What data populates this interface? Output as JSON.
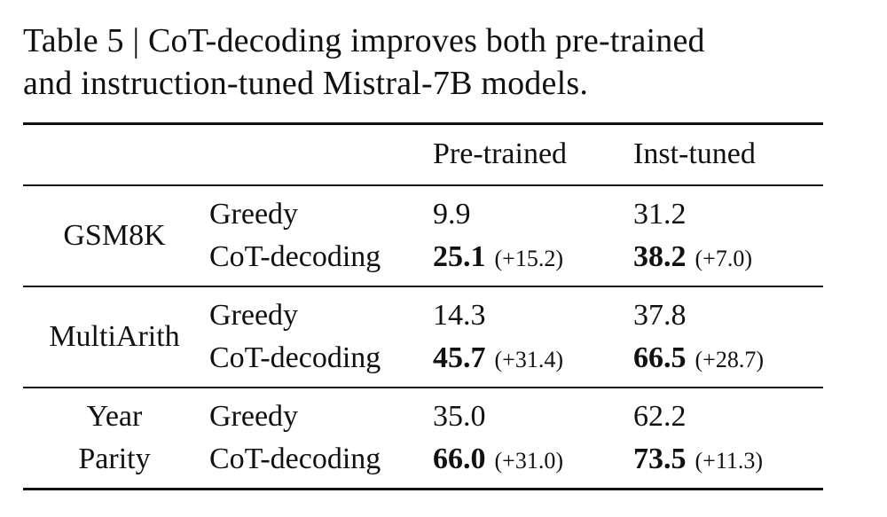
{
  "caption": {
    "line1": "Table 5 | CoT-decoding improves both pre-trained",
    "line2": "and instruction-tuned Mistral-7B models."
  },
  "table": {
    "headers": [
      "Pre-trained",
      "Inst-tuned"
    ],
    "groups": [
      {
        "dataset_lines": [
          "GSM8K"
        ],
        "rows": [
          {
            "method": "Greedy",
            "pretrained": "9.9",
            "inst": "31.2"
          },
          {
            "method": "CoT-decoding",
            "pretrained": "25.1",
            "pretrained_delta": "(+15.2)",
            "inst": "38.2",
            "inst_delta": "(+7.0)"
          }
        ]
      },
      {
        "dataset_lines": [
          "MultiArith"
        ],
        "rows": [
          {
            "method": "Greedy",
            "pretrained": "14.3",
            "inst": "37.8"
          },
          {
            "method": "CoT-decoding",
            "pretrained": "45.7",
            "pretrained_delta": "(+31.4)",
            "inst": "66.5",
            "inst_delta": "(+28.7)"
          }
        ]
      },
      {
        "dataset_lines": [
          "Year",
          "Parity"
        ],
        "rows": [
          {
            "method": "Greedy",
            "pretrained": "35.0",
            "inst": "62.2"
          },
          {
            "method": "CoT-decoding",
            "pretrained": "66.0",
            "pretrained_delta": "(+31.0)",
            "inst": "73.5",
            "inst_delta": "(+11.3)"
          }
        ]
      }
    ]
  }
}
